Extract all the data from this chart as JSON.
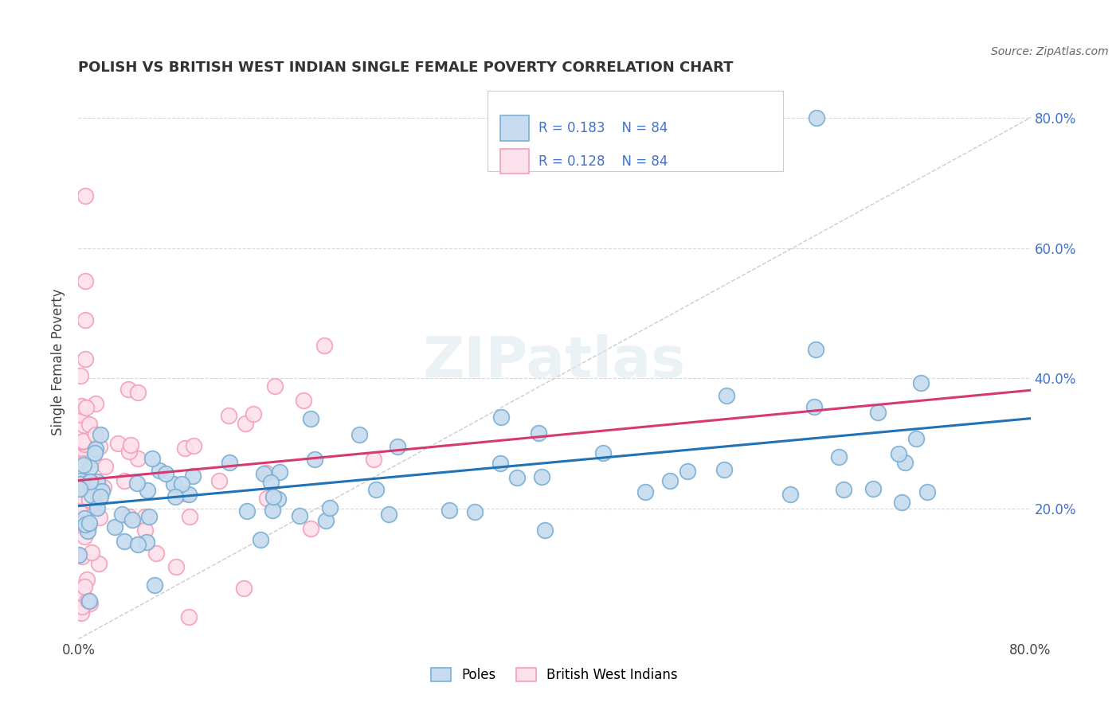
{
  "title": "POLISH VS BRITISH WEST INDIAN SINGLE FEMALE POVERTY CORRELATION CHART",
  "source": "Source: ZipAtlas.com",
  "ylabel": "Single Female Poverty",
  "xlim": [
    0.0,
    0.8
  ],
  "ylim": [
    0.0,
    0.85
  ],
  "xtick_positions": [
    0.0,
    0.1,
    0.2,
    0.3,
    0.4,
    0.5,
    0.6,
    0.7,
    0.8
  ],
  "xticklabels": [
    "0.0%",
    "",
    "",
    "",
    "",
    "",
    "",
    "",
    "80.0%"
  ],
  "ytick_right_positions": [
    0.2,
    0.4,
    0.6,
    0.8
  ],
  "ytick_right_labels": [
    "20.0%",
    "40.0%",
    "60.0%",
    "80.0%"
  ],
  "blue_edge": "#7aafd4",
  "blue_fill": "#c6dbef",
  "pink_edge": "#f4a0b5",
  "pink_fill": "#fce0eb",
  "line_blue": "#2171b5",
  "line_pink": "#d63870",
  "diag_color": "#cccccc",
  "grid_color": "#d8d8d8",
  "right_tick_color": "#4472c4",
  "watermark": "ZIPatlas",
  "legend_label1": "Poles",
  "legend_label2": "British West Indians",
  "legend_r1": "R = 0.183",
  "legend_n1": "N = 84",
  "legend_r2": "R = 0.128",
  "legend_n2": "N = 84"
}
